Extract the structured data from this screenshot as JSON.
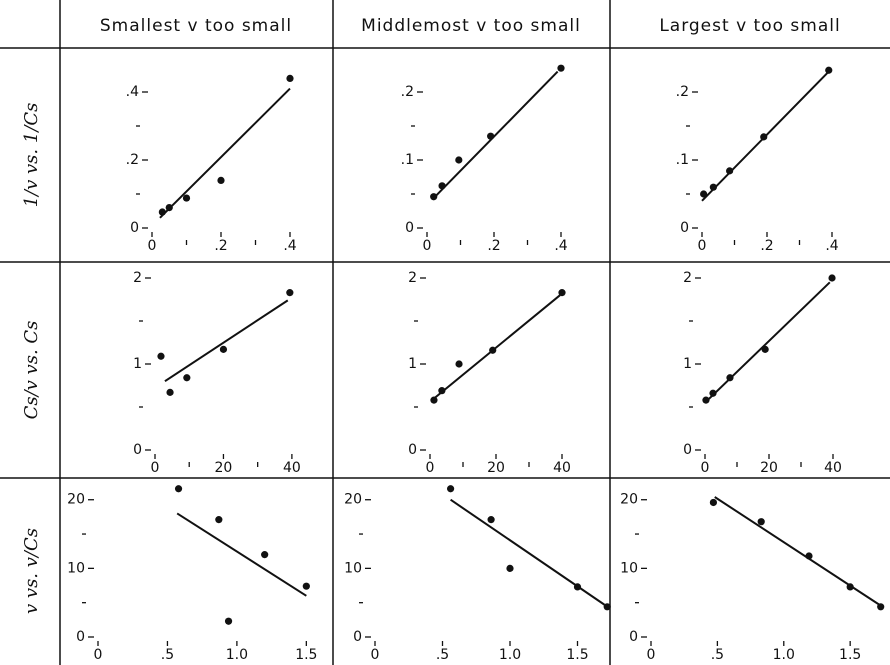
{
  "column_headers": [
    "Smallest v too small",
    "Middlemost v too small",
    "Largest v too small"
  ],
  "row_labels": [
    "1/v vs. 1/Cs",
    "Cs/v vs. Cs",
    "v vs. v/Cs"
  ],
  "chart_data": [
    {
      "type": "scatter",
      "x": [
        0.03,
        0.05,
        0.1,
        0.2,
        0.4
      ],
      "y": [
        0.047,
        0.06,
        0.088,
        0.14,
        0.44
      ],
      "fit": {
        "x": [
          0.023,
          0.4
        ],
        "y": [
          0.03,
          0.41
        ]
      },
      "xlim": [
        0,
        0.45
      ],
      "ylim": [
        0,
        0.45
      ],
      "xticks": [
        0,
        {
          "value": 0.2,
          "label": ".2"
        },
        {
          "value": 0.4,
          "label": ".4"
        }
      ],
      "xticks_minor": [
        0.1,
        0.3
      ],
      "yticks": [
        0,
        {
          "value": 0.2,
          "label": ".2"
        },
        {
          "value": 0.4,
          "label": ".4"
        }
      ],
      "yticks_minor": [
        0.1,
        0.3
      ]
    },
    {
      "type": "scatter",
      "x": [
        0.02,
        0.045,
        0.095,
        0.19,
        0.4
      ],
      "y": [
        0.046,
        0.062,
        0.1,
        0.135,
        0.235
      ],
      "fit": {
        "x": [
          0.02,
          0.39
        ],
        "y": [
          0.044,
          0.23
        ]
      },
      "xlim": [
        0,
        0.45
      ],
      "ylim": [
        0,
        0.25
      ],
      "xticks": [
        0,
        {
          "value": 0.2,
          "label": ".2"
        },
        {
          "value": 0.4,
          "label": ".4"
        }
      ],
      "xticks_minor": [
        0.1,
        0.3
      ],
      "yticks": [
        0,
        {
          "value": 0.1,
          "label": ".1"
        },
        {
          "value": 0.2,
          "label": ".2"
        }
      ],
      "yticks_minor": [
        0.05,
        0.15
      ]
    },
    {
      "type": "scatter",
      "x": [
        0.005,
        0.035,
        0.085,
        0.19,
        0.39
      ],
      "y": [
        0.05,
        0.06,
        0.084,
        0.134,
        0.232
      ],
      "fit": {
        "x": [
          0,
          0.39
        ],
        "y": [
          0.04,
          0.23
        ]
      },
      "xlim": [
        0,
        0.45
      ],
      "ylim": [
        0,
        0.25
      ],
      "xticks": [
        0,
        {
          "value": 0.2,
          "label": ".2"
        },
        {
          "value": 0.4,
          "label": ".4"
        }
      ],
      "xticks_minor": [
        0.1,
        0.3
      ],
      "yticks": [
        0,
        {
          "value": 0.1,
          "label": ".1"
        },
        {
          "value": 0.2,
          "label": ".2"
        }
      ],
      "yticks_minor": [
        0.05,
        0.15
      ]
    },
    {
      "type": "scatter",
      "x": [
        1.75,
        4.4,
        9.3,
        20,
        39.4
      ],
      "y": [
        1.09,
        0.67,
        0.84,
        1.17,
        1.83
      ],
      "fit": {
        "x": [
          2.9,
          38.8
        ],
        "y": [
          0.8,
          1.74
        ]
      },
      "xlim": [
        0,
        45
      ],
      "ylim": [
        0,
        2.1
      ],
      "xticks": [
        0,
        20,
        40
      ],
      "xticks_minor": [
        10,
        30
      ],
      "yticks": [
        0,
        1,
        2
      ],
      "yticks_minor": [
        0.5,
        1.5
      ]
    },
    {
      "type": "scatter",
      "x": [
        1.2,
        3.6,
        8.8,
        19,
        40
      ],
      "y": [
        0.58,
        0.69,
        1.0,
        1.16,
        1.83
      ],
      "fit": {
        "x": [
          0.6,
          39.4
        ],
        "y": [
          0.58,
          1.8
        ]
      },
      "xlim": [
        0,
        45
      ],
      "ylim": [
        0,
        2.1
      ],
      "xticks": [
        0,
        20,
        40
      ],
      "xticks_minor": [
        10,
        30
      ],
      "yticks": [
        0,
        1,
        2
      ],
      "yticks_minor": [
        0.5,
        1.5
      ]
    },
    {
      "type": "scatter",
      "x": [
        0.3,
        2.5,
        7.8,
        18.8,
        39.7
      ],
      "y": [
        0.58,
        0.66,
        0.84,
        1.17,
        2.0
      ],
      "fit": {
        "x": [
          0,
          39
        ],
        "y": [
          0.55,
          1.95
        ]
      },
      "xlim": [
        0,
        45
      ],
      "ylim": [
        0,
        2.1
      ],
      "xticks": [
        0,
        20,
        40
      ],
      "xticks_minor": [
        10,
        30
      ],
      "yticks": [
        0,
        1,
        2
      ],
      "yticks_minor": [
        0.5,
        1.5
      ]
    },
    {
      "type": "scatter",
      "x": [
        0.58,
        0.87,
        1.2,
        0.94,
        1.5
      ],
      "y": [
        21.6,
        17.1,
        12.0,
        2.3,
        7.4
      ],
      "fit": {
        "x": [
          0.57,
          1.5
        ],
        "y": [
          18,
          6
        ]
      },
      "xlim": [
        0,
        1.8
      ],
      "ylim": [
        0,
        22
      ],
      "xticks": [
        0,
        {
          "value": 0.5,
          "label": ".5"
        },
        {
          "value": 1,
          "label": "1.0"
        },
        1.5
      ],
      "yticks": [
        0,
        10,
        20
      ],
      "yticks_minor": [
        5,
        15
      ]
    },
    {
      "type": "scatter",
      "x": [
        0.56,
        0.86,
        1.0,
        1.5,
        1.72
      ],
      "y": [
        21.6,
        17.1,
        10,
        7.3,
        4.4
      ],
      "fit": {
        "x": [
          0.56,
          1.7
        ],
        "y": [
          20,
          4.7
        ]
      },
      "xlim": [
        0,
        1.8
      ],
      "ylim": [
        0,
        22
      ],
      "xticks": [
        0,
        {
          "value": 0.5,
          "label": ".5"
        },
        {
          "value": 1,
          "label": "1.0"
        },
        1.5
      ],
      "yticks": [
        0,
        10,
        20
      ],
      "yticks_minor": [
        5,
        15
      ]
    },
    {
      "type": "scatter",
      "x": [
        0.47,
        0.83,
        1.19,
        1.5,
        1.73
      ],
      "y": [
        19.6,
        16.8,
        11.8,
        7.3,
        4.4
      ],
      "fit": {
        "x": [
          0.48,
          1.72
        ],
        "y": [
          20.4,
          4.7
        ]
      },
      "xlim": [
        0,
        1.8
      ],
      "ylim": [
        0,
        22
      ],
      "xticks": [
        0,
        {
          "value": 0.5,
          "label": ".5"
        },
        {
          "value": 1,
          "label": "1.0"
        },
        1.5
      ],
      "yticks": [
        0,
        10,
        20
      ],
      "yticks_minor": [
        5,
        15
      ]
    }
  ]
}
